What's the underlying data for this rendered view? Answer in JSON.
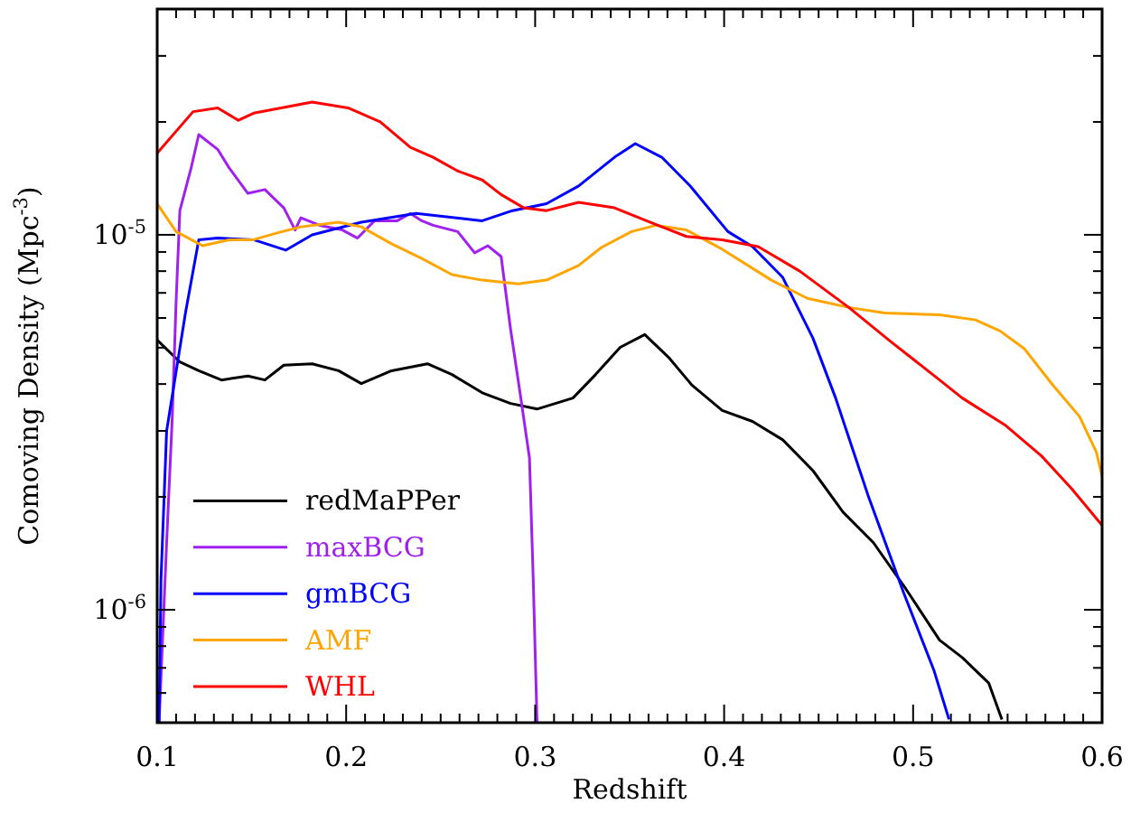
{
  "chart_data": {
    "type": "line",
    "xlabel": "Redshift",
    "ylabel": "Comoving Density (Mpc$^{-3}$)",
    "log": "y",
    "legend": "bottom left",
    "xlim": [
      0.1,
      0.6
    ],
    "ylim": [
      5e-07,
      4e-05
    ],
    "xticks": [
      0.1,
      {
        "value": 0.11,
        "label": null
      },
      {
        "value": 0.12,
        "label": null
      },
      {
        "value": 0.13,
        "label": null
      },
      {
        "value": 0.14,
        "label": null
      },
      {
        "value": 0.15,
        "label": null
      },
      {
        "value": 0.16,
        "label": null
      },
      {
        "value": 0.17,
        "label": null
      },
      {
        "value": 0.18,
        "label": null
      },
      {
        "value": 0.19,
        "label": null
      },
      0.2,
      {
        "value": 0.21,
        "label": null
      },
      {
        "value": 0.22,
        "label": null
      },
      {
        "value": 0.23,
        "label": null
      },
      {
        "value": 0.24,
        "label": null
      },
      {
        "value": 0.25,
        "label": null
      },
      {
        "value": 0.26,
        "label": null
      },
      {
        "value": 0.27,
        "label": null
      },
      {
        "value": 0.28,
        "label": null
      },
      {
        "value": 0.29,
        "label": null
      },
      0.3,
      {
        "value": 0.31,
        "label": null
      },
      {
        "value": 0.32,
        "label": null
      },
      {
        "value": 0.33,
        "label": null
      },
      {
        "value": 0.34,
        "label": null
      },
      {
        "value": 0.35,
        "label": null
      },
      {
        "value": 0.36,
        "label": null
      },
      {
        "value": 0.37,
        "label": null
      },
      {
        "value": 0.38,
        "label": null
      },
      {
        "value": 0.39,
        "label": null
      },
      0.4,
      {
        "value": 0.41,
        "label": null
      },
      {
        "value": 0.42,
        "label": null
      },
      {
        "value": 0.43,
        "label": null
      },
      {
        "value": 0.44,
        "label": null
      },
      {
        "value": 0.45,
        "label": null
      },
      {
        "value": 0.46,
        "label": null
      },
      {
        "value": 0.47,
        "label": null
      },
      {
        "value": 0.48,
        "label": null
      },
      {
        "value": 0.49,
        "label": null
      },
      0.5,
      {
        "value": 0.51,
        "label": null
      },
      {
        "value": 0.52,
        "label": null
      },
      {
        "value": 0.53,
        "label": null
      },
      {
        "value": 0.54,
        "label": null
      },
      {
        "value": 0.55,
        "label": null
      },
      {
        "value": 0.56,
        "label": null
      },
      {
        "value": 0.57,
        "label": null
      },
      {
        "value": 0.58,
        "label": null
      },
      {
        "value": 0.59,
        "label": null
      },
      0.6
    ],
    "yticks": [
      {
        "value": 5e-07,
        "label": null
      },
      {
        "value": 6e-07,
        "label": null
      },
      {
        "value": 7e-07,
        "label": null
      },
      {
        "value": 8e-07,
        "label": null
      },
      {
        "value": 9e-07,
        "label": null
      },
      {
        "value": 1e-06,
        "label": "10$^{-6}$"
      },
      {
        "value": 2e-06,
        "label": null
      },
      {
        "value": 3e-06,
        "label": null
      },
      {
        "value": 4e-06,
        "label": null
      },
      {
        "value": 5e-06,
        "label": null
      },
      {
        "value": 6e-06,
        "label": null
      },
      {
        "value": 7e-06,
        "label": null
      },
      {
        "value": 8e-06,
        "label": null
      },
      {
        "value": 9e-06,
        "label": null
      },
      {
        "value": 1e-05,
        "label": "10$^{-5}$"
      },
      {
        "value": 2e-05,
        "label": null
      },
      {
        "value": 3e-05,
        "label": null
      }
    ],
    "series": [
      {
        "name": "redMaPPer",
        "color": "#000000",
        "x": [
          0.1,
          0.112,
          0.122,
          0.134,
          0.148,
          0.157,
          0.167,
          0.182,
          0.196,
          0.208,
          0.224,
          0.243,
          0.256,
          0.272,
          0.287,
          0.301,
          0.32,
          0.332,
          0.345,
          0.358,
          0.371,
          0.383,
          0.399,
          0.415,
          0.431,
          0.447,
          0.463,
          0.479,
          0.495,
          0.514,
          0.526,
          0.54,
          0.547
        ],
        "values": [
          5.24e-06,
          4.58e-06,
          4.34e-06,
          4.1e-06,
          4.2e-06,
          4.1e-06,
          4.49e-06,
          4.53e-06,
          4.34e-06,
          4.01e-06,
          4.34e-06,
          4.53e-06,
          4.24e-06,
          3.79e-06,
          3.55e-06,
          3.43e-06,
          3.67e-06,
          4.24e-06,
          5.01e-06,
          5.42e-06,
          4.69e-06,
          3.97e-06,
          3.4e-06,
          3.18e-06,
          2.84e-06,
          2.35e-06,
          1.82e-06,
          1.51e-06,
          1.16e-06,
          8.3e-07,
          7.46e-07,
          6.38e-07,
          5.1e-07
        ]
      },
      {
        "name": "maxBCG",
        "color": "#a020f0",
        "x": [
          0.101,
          0.105,
          0.108,
          0.11,
          0.112,
          0.118,
          0.122,
          0.132,
          0.138,
          0.148,
          0.157,
          0.167,
          0.173,
          0.176,
          0.186,
          0.198,
          0.206,
          0.215,
          0.227,
          0.234,
          0.24,
          0.246,
          0.259,
          0.268,
          0.275,
          0.282,
          0.287,
          0.292,
          0.297,
          0.299,
          0.301
        ],
        "values": [
          5e-07,
          1.51e-06,
          3.28e-06,
          6.62e-06,
          1.16e-05,
          1.51e-05,
          1.85e-05,
          1.69e-05,
          1.51e-05,
          1.29e-05,
          1.32e-05,
          1.18e-05,
          1.03e-05,
          1.11e-05,
          1.06e-05,
          1.03e-05,
          9.8e-06,
          1.09e-05,
          1.09e-05,
          1.14e-05,
          1.09e-05,
          1.06e-05,
          1.02e-05,
          8.95e-06,
          9.35e-06,
          8.75e-06,
          5.6e-06,
          3.79e-06,
          2.54e-06,
          1.2e-06,
          5e-07
        ]
      },
      {
        "name": "gmBCG",
        "color": "#0000ff",
        "x": [
          0.101,
          0.102,
          0.105,
          0.115,
          0.122,
          0.132,
          0.151,
          0.168,
          0.182,
          0.208,
          0.237,
          0.272,
          0.288,
          0.306,
          0.323,
          0.342,
          0.353,
          0.367,
          0.382,
          0.402,
          0.415,
          0.431,
          0.447,
          0.459,
          0.476,
          0.495,
          0.511,
          0.519
        ],
        "values": [
          5e-07,
          1.2e-06,
          3e-06,
          6.2e-06,
          9.7e-06,
          9.8e-06,
          9.7e-06,
          9.1e-06,
          1e-05,
          1.08e-05,
          1.14e-05,
          1.09e-05,
          1.16e-05,
          1.21e-05,
          1.35e-05,
          1.61e-05,
          1.75e-05,
          1.61e-05,
          1.35e-05,
          1.02e-05,
          9.3e-06,
          7.7e-06,
          5.3e-06,
          3.67e-06,
          2.03e-06,
          1.11e-06,
          6.9e-07,
          5.1e-07
        ]
      },
      {
        "name": "AMF",
        "color": "#ffa500",
        "x": [
          0.1,
          0.11,
          0.124,
          0.138,
          0.151,
          0.163,
          0.176,
          0.196,
          0.208,
          0.224,
          0.24,
          0.256,
          0.272,
          0.291,
          0.306,
          0.323,
          0.335,
          0.351,
          0.364,
          0.38,
          0.399,
          0.425,
          0.444,
          0.466,
          0.485,
          0.514,
          0.533,
          0.546,
          0.559,
          0.574,
          0.588,
          0.597,
          0.6
        ],
        "values": [
          1.21e-05,
          1.02e-05,
          9.35e-06,
          9.7e-06,
          9.7e-06,
          1.01e-05,
          1.05e-05,
          1.08e-05,
          1.05e-05,
          9.46e-06,
          8.65e-06,
          7.83e-06,
          7.57e-06,
          7.4e-06,
          7.57e-06,
          8.28e-06,
          9.25e-06,
          1.02e-05,
          1.06e-05,
          1.03e-05,
          9.15e-06,
          7.57e-06,
          6.77e-06,
          6.4e-06,
          6.19e-06,
          6.12e-06,
          5.93e-06,
          5.54e-06,
          4.96e-06,
          3.97e-06,
          3.28e-06,
          2.63e-06,
          2.27e-06
        ]
      },
      {
        "name": "WHL",
        "color": "#ff0000",
        "x": [
          0.1,
          0.119,
          0.132,
          0.143,
          0.151,
          0.182,
          0.201,
          0.218,
          0.234,
          0.246,
          0.259,
          0.272,
          0.282,
          0.294,
          0.306,
          0.323,
          0.342,
          0.361,
          0.38,
          0.399,
          0.418,
          0.44,
          0.466,
          0.488,
          0.514,
          0.526,
          0.549,
          0.568,
          0.584,
          0.6
        ],
        "values": [
          1.65e-05,
          2.13e-05,
          2.18e-05,
          2.02e-05,
          2.11e-05,
          2.26e-05,
          2.18e-05,
          2e-05,
          1.71e-05,
          1.61e-05,
          1.48e-05,
          1.4e-05,
          1.28e-05,
          1.18e-05,
          1.16e-05,
          1.22e-05,
          1.18e-05,
          1.08e-05,
          9.9e-06,
          9.7e-06,
          9.3e-06,
          8e-06,
          6.4e-06,
          5.2e-06,
          4.1e-06,
          3.67e-06,
          3.1e-06,
          2.57e-06,
          2.1e-06,
          1.68e-06
        ]
      }
    ]
  }
}
